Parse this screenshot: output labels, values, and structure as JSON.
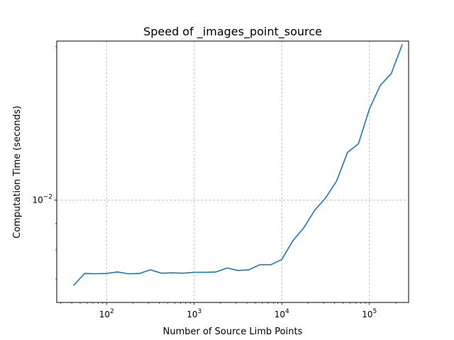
{
  "chart_data": {
    "type": "line",
    "title": "Speed of _images_point_source",
    "xlabel": "Number of Source Limb Points",
    "ylabel": "Computation Time (seconds)",
    "x_scale": "log",
    "y_scale": "log",
    "xlim": [
      27,
      280000
    ],
    "ylim": [
      0.0063,
      0.0205
    ],
    "grid": true,
    "x_ticks": [
      {
        "value": 100,
        "base": "10",
        "exp": "2"
      },
      {
        "value": 1000,
        "base": "10",
        "exp": "3"
      },
      {
        "value": 10000,
        "base": "10",
        "exp": "4"
      },
      {
        "value": 100000,
        "base": "10",
        "exp": "5"
      }
    ],
    "y_ticks": [
      {
        "value": 0.01,
        "base": "10",
        "exp": "−2"
      }
    ],
    "series": [
      {
        "color": "#1f77b4",
        "x": [
          42,
          56,
          75,
          100,
          133,
          178,
          237,
          316,
          422,
          562,
          750,
          1000,
          1334,
          1778,
          2371,
          3162,
          4217,
          5623,
          7499,
          10000,
          13335,
          17783,
          23714,
          31623,
          42170,
          56234,
          74989,
          100000,
          133352,
          177828,
          237137
        ],
        "y": [
          0.0068,
          0.00718,
          0.00717,
          0.00718,
          0.00723,
          0.00717,
          0.00718,
          0.0073,
          0.00719,
          0.0072,
          0.00719,
          0.00722,
          0.00722,
          0.00723,
          0.00736,
          0.00728,
          0.0073,
          0.00747,
          0.00747,
          0.00765,
          0.00832,
          0.00882,
          0.00955,
          0.0101,
          0.0109,
          0.0124,
          0.0129,
          0.0151,
          0.0168,
          0.0177,
          0.0202
        ]
      }
    ]
  }
}
